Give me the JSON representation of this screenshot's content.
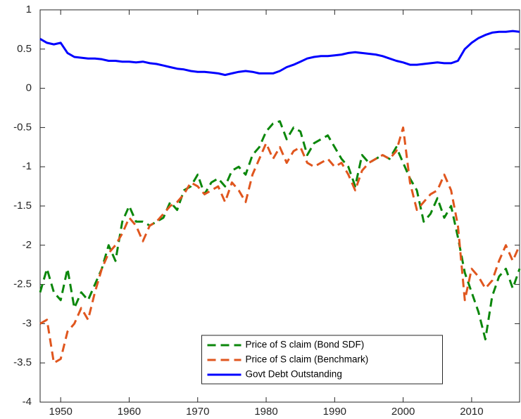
{
  "chart_data": {
    "type": "line",
    "x": [
      1947,
      1948,
      1949,
      1950,
      1951,
      1952,
      1953,
      1954,
      1955,
      1956,
      1957,
      1958,
      1959,
      1960,
      1961,
      1962,
      1963,
      1964,
      1965,
      1966,
      1967,
      1968,
      1969,
      1970,
      1971,
      1972,
      1973,
      1974,
      1975,
      1976,
      1977,
      1978,
      1979,
      1980,
      1981,
      1982,
      1983,
      1984,
      1985,
      1986,
      1987,
      1988,
      1989,
      1990,
      1991,
      1992,
      1993,
      1994,
      1995,
      1996,
      1997,
      1998,
      1999,
      2000,
      2001,
      2002,
      2003,
      2004,
      2005,
      2006,
      2007,
      2008,
      2009,
      2010,
      2011,
      2012,
      2013,
      2014,
      2015,
      2016,
      2017
    ],
    "series": [
      {
        "name": "Price of S claim (Bond SDF)",
        "color": "#0b870b",
        "dash": true,
        "values": [
          -2.6,
          -2.3,
          -2.6,
          -2.7,
          -2.3,
          -2.8,
          -2.6,
          -2.7,
          -2.5,
          -2.3,
          -2.0,
          -2.2,
          -1.7,
          -1.5,
          -1.7,
          -1.7,
          -1.75,
          -1.7,
          -1.65,
          -1.45,
          -1.55,
          -1.3,
          -1.25,
          -1.1,
          -1.35,
          -1.2,
          -1.15,
          -1.25,
          -1.05,
          -1.0,
          -1.1,
          -0.85,
          -0.75,
          -0.55,
          -0.45,
          -0.42,
          -0.65,
          -0.5,
          -0.55,
          -0.85,
          -0.7,
          -0.65,
          -0.6,
          -0.75,
          -0.9,
          -1.0,
          -1.25,
          -0.85,
          -0.95,
          -0.9,
          -0.85,
          -0.9,
          -0.75,
          -0.95,
          -1.15,
          -1.3,
          -1.7,
          -1.6,
          -1.4,
          -1.65,
          -1.5,
          -1.9,
          -2.35,
          -2.6,
          -2.85,
          -3.2,
          -2.65,
          -2.4,
          -2.3,
          -2.55,
          -2.3
        ]
      },
      {
        "name": "Price of S claim (Benchmark)",
        "color": "#e0561e",
        "dash": true,
        "values": [
          -3.0,
          -2.95,
          -3.5,
          -3.45,
          -3.1,
          -3.0,
          -2.8,
          -2.95,
          -2.6,
          -2.3,
          -2.1,
          -2.0,
          -1.85,
          -1.65,
          -1.75,
          -1.95,
          -1.75,
          -1.7,
          -1.6,
          -1.5,
          -1.45,
          -1.35,
          -1.2,
          -1.25,
          -1.35,
          -1.3,
          -1.25,
          -1.45,
          -1.2,
          -1.3,
          -1.45,
          -1.1,
          -0.9,
          -0.7,
          -0.9,
          -0.75,
          -0.95,
          -0.8,
          -0.75,
          -0.95,
          -1.0,
          -0.95,
          -0.9,
          -1.0,
          -0.95,
          -1.1,
          -1.3,
          -1.05,
          -0.95,
          -0.9,
          -0.85,
          -0.9,
          -0.8,
          -0.5,
          -1.2,
          -1.55,
          -1.45,
          -1.35,
          -1.3,
          -1.1,
          -1.3,
          -1.75,
          -2.7,
          -2.3,
          -2.4,
          -2.55,
          -2.45,
          -2.2,
          -2.0,
          -2.2,
          -2.0
        ]
      },
      {
        "name": "Govt Debt Outstanding",
        "color": "#0000ff",
        "dash": false,
        "values": [
          0.63,
          0.58,
          0.56,
          0.58,
          0.45,
          0.4,
          0.39,
          0.38,
          0.38,
          0.37,
          0.35,
          0.35,
          0.34,
          0.34,
          0.33,
          0.34,
          0.32,
          0.31,
          0.29,
          0.27,
          0.25,
          0.24,
          0.22,
          0.21,
          0.21,
          0.2,
          0.19,
          0.17,
          0.19,
          0.21,
          0.22,
          0.21,
          0.19,
          0.19,
          0.19,
          0.22,
          0.27,
          0.3,
          0.34,
          0.38,
          0.4,
          0.41,
          0.41,
          0.42,
          0.43,
          0.45,
          0.46,
          0.45,
          0.44,
          0.43,
          0.41,
          0.38,
          0.35,
          0.33,
          0.3,
          0.3,
          0.31,
          0.32,
          0.33,
          0.32,
          0.32,
          0.35,
          0.5,
          0.58,
          0.64,
          0.68,
          0.71,
          0.72,
          0.72,
          0.73,
          0.72
        ]
      }
    ],
    "xlim": [
      1947,
      2017
    ],
    "xticks": [
      1950,
      1960,
      1970,
      1980,
      1990,
      2000,
      2010
    ],
    "ylim": [
      -4,
      1
    ],
    "yticks": [
      -4,
      -3.5,
      -3,
      -2.5,
      -2,
      -1.5,
      -1,
      -0.5,
      0,
      0.5,
      1
    ],
    "legend": "lower center"
  }
}
